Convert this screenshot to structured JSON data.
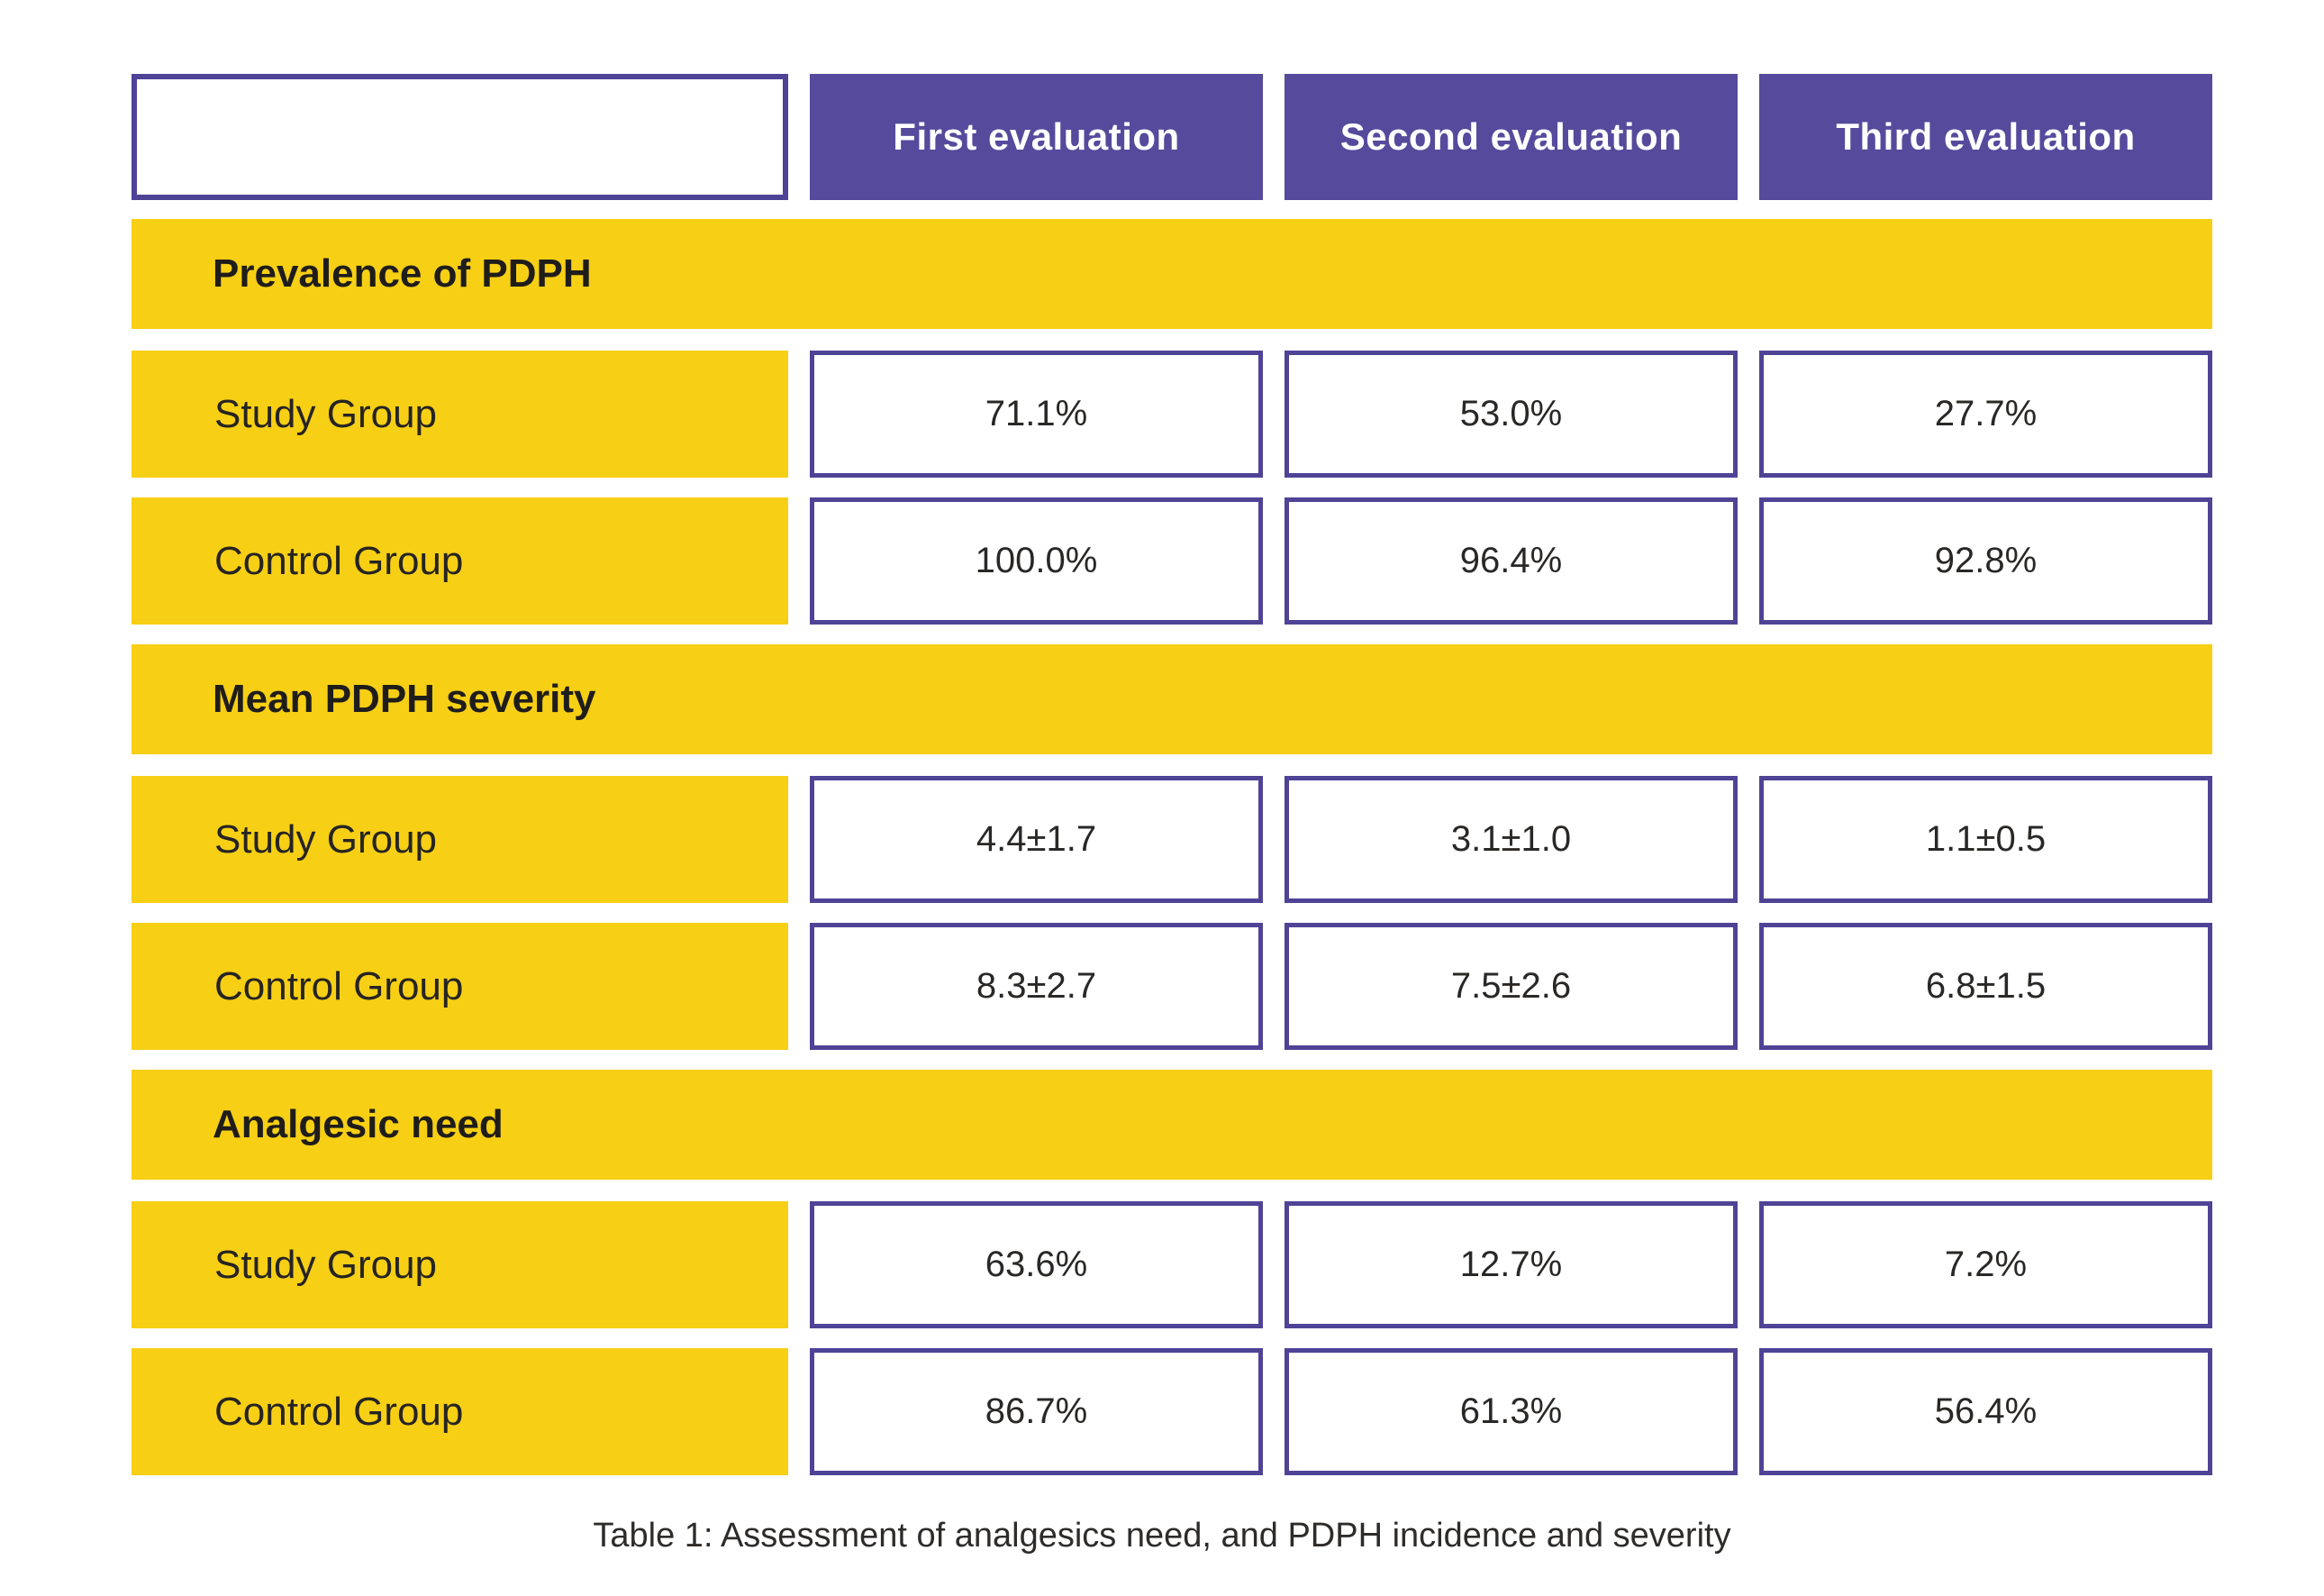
{
  "page": {
    "caption": "Table 1: Assessment of analgesics need, and PDPH incidence and severity"
  },
  "table": {
    "column_headers": [
      {
        "label": "First evaluation"
      },
      {
        "label": "Second evaluation"
      },
      {
        "label": "Third evaluation"
      }
    ],
    "sections": [
      {
        "title": "Prevalence of PDPH",
        "rows": [
          {
            "label": "Study Group",
            "values": [
              "71.1%",
              "53.0%",
              "27.7%"
            ]
          },
          {
            "label": "Control Group",
            "values": [
              "100.0%",
              "96.4%",
              "92.8%"
            ]
          }
        ]
      },
      {
        "title": "Mean PDPH severity",
        "rows": [
          {
            "label": "Study Group",
            "values": [
              "4.4±1.7",
              "3.1±1.0",
              "1.1±0.5"
            ]
          },
          {
            "label": "Control Group",
            "values": [
              "8.3±2.7",
              "7.5±2.6",
              "6.8±1.5"
            ]
          }
        ]
      },
      {
        "title": "Analgesic need",
        "rows": [
          {
            "label": "Study Group",
            "values": [
              "63.6%",
              "12.7%",
              "7.2%"
            ]
          },
          {
            "label": "Control Group",
            "values": [
              "86.7%",
              "61.3%",
              "56.4%"
            ]
          }
        ]
      }
    ]
  },
  "colors": {
    "header_purple": "#554a9c",
    "cell_border_purple": "#4f4396",
    "band_yellow": "#f7cf14",
    "text_dark": "#1f1d1b"
  },
  "chart_data": {
    "type": "table",
    "title": "Table 1: Assessment of analgesics need, and PDPH incidence and severity",
    "columns": [
      "",
      "First evaluation",
      "Second evaluation",
      "Third evaluation"
    ],
    "rows": [
      [
        "Prevalence of PDPH",
        "",
        "",
        ""
      ],
      [
        "Study Group",
        "71.1%",
        "53.0%",
        "27.7%"
      ],
      [
        "Control Group",
        "100.0%",
        "96.4%",
        "92.8%"
      ],
      [
        "Mean PDPH severity",
        "",
        "",
        ""
      ],
      [
        "Study Group",
        "4.4±1.7",
        "3.1±1.0",
        "1.1±0.5"
      ],
      [
        "Control Group",
        "8.3±2.7",
        "7.5±2.6",
        "6.8±1.5"
      ],
      [
        "Analgesic need",
        "",
        "",
        ""
      ],
      [
        "Study Group",
        "63.6%",
        "12.7%",
        "7.2%"
      ],
      [
        "Control Group",
        "86.7%",
        "61.3%",
        "56.4%"
      ]
    ]
  }
}
